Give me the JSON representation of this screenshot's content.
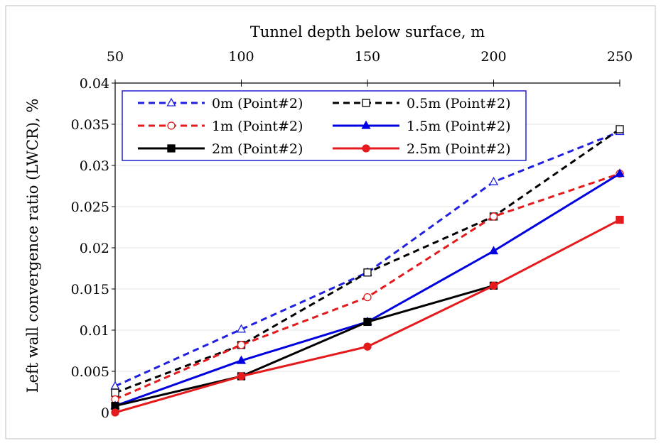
{
  "chart_data": {
    "type": "line",
    "xlabel": "Tunnel depth below surface, m",
    "ylabel": "Left wall convergence ratio (LWCR), %",
    "x": [
      50,
      100,
      150,
      200,
      250
    ],
    "xlim": [
      50,
      250
    ],
    "ylim": [
      0,
      0.04
    ],
    "x_ticks": [
      "50",
      "100",
      "150",
      "200",
      "250"
    ],
    "y_ticks": [
      "0",
      "0.005",
      "0.01",
      "0.015",
      "0.02",
      "0.025",
      "0.03",
      "0.035",
      "0.04"
    ],
    "x_axis_position": "top",
    "grid": true,
    "legend_position": "top-left",
    "series": [
      {
        "name": "0m (Point#2)",
        "values": [
          0.0032,
          0.0101,
          0.017,
          0.028,
          0.0341
        ],
        "color": "#1f1fe0",
        "dashed": true,
        "marker": "triangle-open"
      },
      {
        "name": "0.5m (Point#2)",
        "values": [
          0.0024,
          0.0082,
          0.017,
          0.0238,
          0.0344
        ],
        "color": "#000000",
        "dashed": true,
        "marker": "square-open"
      },
      {
        "name": "1m (Point#2)",
        "values": [
          0.0016,
          0.0082,
          0.014,
          0.0238,
          0.029
        ],
        "color": "#e41a1c",
        "dashed": true,
        "marker": "circle-open"
      },
      {
        "name": "1.5m (Point#2)",
        "values": [
          0.0008,
          0.0063,
          0.011,
          0.0196,
          0.029
        ],
        "color": "#0000e0",
        "dashed": false,
        "marker": "triangle-filled"
      },
      {
        "name": "2m (Point#2)",
        "values": [
          0.0008,
          0.0044,
          0.011,
          0.0154,
          null
        ],
        "color": "#000000",
        "dashed": false,
        "marker": "square-filled"
      },
      {
        "name": "2.5m (Point#2)",
        "values": [
          0.0,
          0.0044,
          0.008,
          0.0154,
          0.0234
        ],
        "color": "#e41a1c",
        "dashed": false,
        "marker": "circle-filled",
        "end_marker": "square-filled"
      }
    ]
  }
}
